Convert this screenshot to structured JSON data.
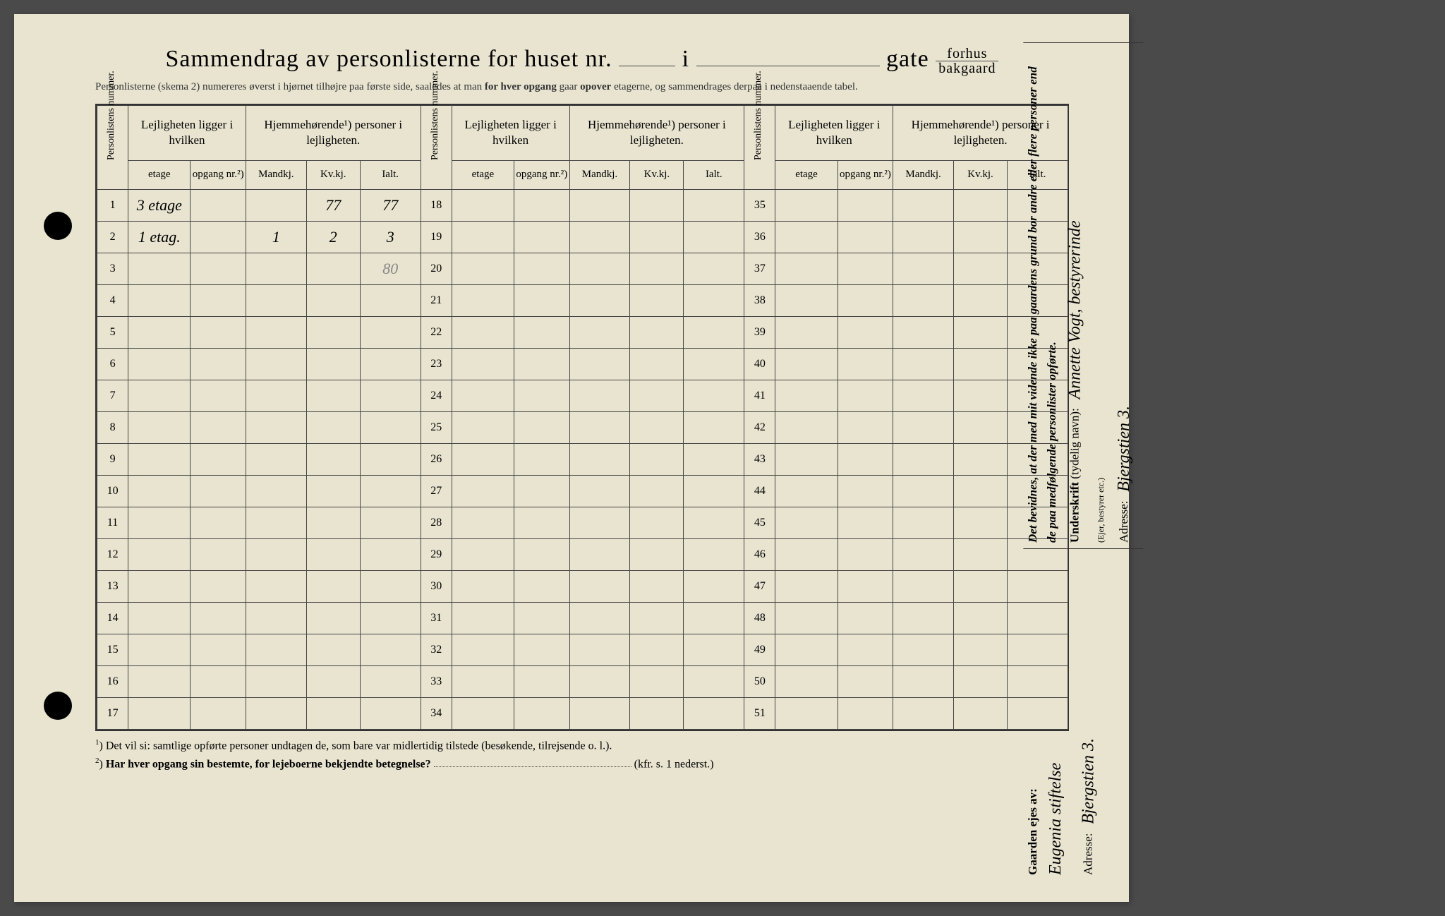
{
  "title": {
    "main": "Sammendrag av personlisterne for huset nr.",
    "i": "i",
    "gate": "gate",
    "forhus": "forhus",
    "bakgaard": "bakgaard"
  },
  "subtitle": {
    "pre": "Personlisterne (skema 2) numereres øverst i hjørnet tilhøjre paa første side, saaledes at man ",
    "b1": "for hver opgang",
    "mid": " gaar ",
    "b2": "opover",
    "post": " etagerne, og sammendrages derpaa i nedenstaaende tabel."
  },
  "headers": {
    "personlistens": "Personlistens nummer.",
    "lejligheten": "Lejligheten ligger i hvilken",
    "hjemmehorende": "Hjemmehørende¹) personer i lejligheten.",
    "etage": "etage",
    "opgang": "opgang nr.²)",
    "mandkj": "Mandkj.",
    "kvkj": "Kv.kj.",
    "ialt": "Ialt."
  },
  "rows_a": [
    {
      "n": "1",
      "etage": "3 etage",
      "opgang": "",
      "m": "",
      "k": "77",
      "i": "77"
    },
    {
      "n": "2",
      "etage": "1 etag.",
      "opgang": "",
      "m": "1",
      "k": "2",
      "i": "3"
    },
    {
      "n": "3",
      "etage": "",
      "opgang": "",
      "m": "",
      "k": "",
      "i": "80"
    },
    {
      "n": "4",
      "etage": "",
      "opgang": "",
      "m": "",
      "k": "",
      "i": ""
    },
    {
      "n": "5",
      "etage": "",
      "opgang": "",
      "m": "",
      "k": "",
      "i": ""
    },
    {
      "n": "6",
      "etage": "",
      "opgang": "",
      "m": "",
      "k": "",
      "i": ""
    },
    {
      "n": "7",
      "etage": "",
      "opgang": "",
      "m": "",
      "k": "",
      "i": ""
    },
    {
      "n": "8",
      "etage": "",
      "opgang": "",
      "m": "",
      "k": "",
      "i": ""
    },
    {
      "n": "9",
      "etage": "",
      "opgang": "",
      "m": "",
      "k": "",
      "i": ""
    },
    {
      "n": "10",
      "etage": "",
      "opgang": "",
      "m": "",
      "k": "",
      "i": ""
    },
    {
      "n": "11",
      "etage": "",
      "opgang": "",
      "m": "",
      "k": "",
      "i": ""
    },
    {
      "n": "12",
      "etage": "",
      "opgang": "",
      "m": "",
      "k": "",
      "i": ""
    },
    {
      "n": "13",
      "etage": "",
      "opgang": "",
      "m": "",
      "k": "",
      "i": ""
    },
    {
      "n": "14",
      "etage": "",
      "opgang": "",
      "m": "",
      "k": "",
      "i": ""
    },
    {
      "n": "15",
      "etage": "",
      "opgang": "",
      "m": "",
      "k": "",
      "i": ""
    },
    {
      "n": "16",
      "etage": "",
      "opgang": "",
      "m": "",
      "k": "",
      "i": ""
    },
    {
      "n": "17",
      "etage": "",
      "opgang": "",
      "m": "",
      "k": "",
      "i": ""
    }
  ],
  "rows_b_start": 18,
  "rows_c_start": 35,
  "footnotes": {
    "f1": "Det vil si: samtlige opførte personer undtagen de, som bare var midlertidig tilstede (besøkende, tilrejsende o. l.).",
    "f2": "Har hver opgang sin bestemte, for lejeboerne bekjendte betegnelse?",
    "f2_ref": "(kfr. s. 1 nederst.)"
  },
  "side": {
    "attestation": "Det bevidnes, at der med mit vidende ikke paa gaardens grund bor andre eller flere personer end de paa medfølgende personlister opførte.",
    "underskrift_label": "Underskrift",
    "underskrift_note": "(tydelig navn):",
    "underskrift_value": "Annette Vogt, bestyrerinde",
    "role_note": "(Ejer, bestyrer etc.)",
    "adresse_label": "Adresse:",
    "adresse_value_1": "Bjergstien 3.",
    "gaarden_label": "Gaarden ejes av:",
    "gaarden_value": "Eugenia stiftelse",
    "adresse_value_2": "Bjergstien 3."
  },
  "styling": {
    "paper_color": "#e8e4d0",
    "ink_color": "#333333",
    "handwriting_color": "#2a2a2a",
    "pencil_color": "#888888",
    "border_color": "#444444"
  }
}
